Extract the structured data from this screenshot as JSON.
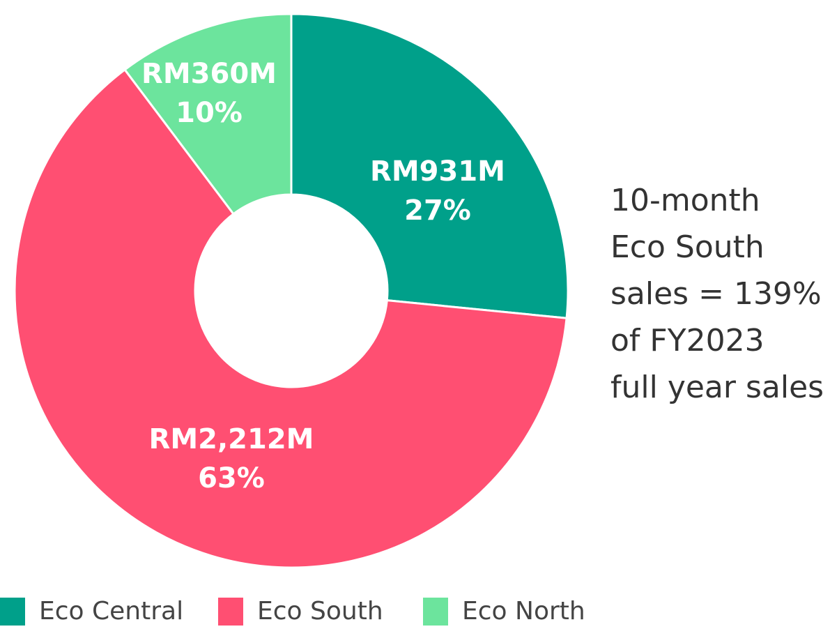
{
  "chart_data": {
    "type": "donut",
    "categories": [
      "Eco Central",
      "Eco South",
      "Eco North"
    ],
    "values": [
      931,
      2212,
      360
    ],
    "value_labels": [
      "RM931M",
      "RM2,212M",
      "RM360M"
    ],
    "percentages": [
      27,
      63,
      10
    ],
    "percentage_labels": [
      "27%",
      "63%",
      "10%"
    ],
    "colors": [
      "#00a08a",
      "#ff4f72",
      "#6ce49d"
    ],
    "annotation": [
      "10-month",
      "Eco South",
      "sales = 139%",
      "of FY2023",
      "full year sales"
    ],
    "legend": "bottom"
  }
}
